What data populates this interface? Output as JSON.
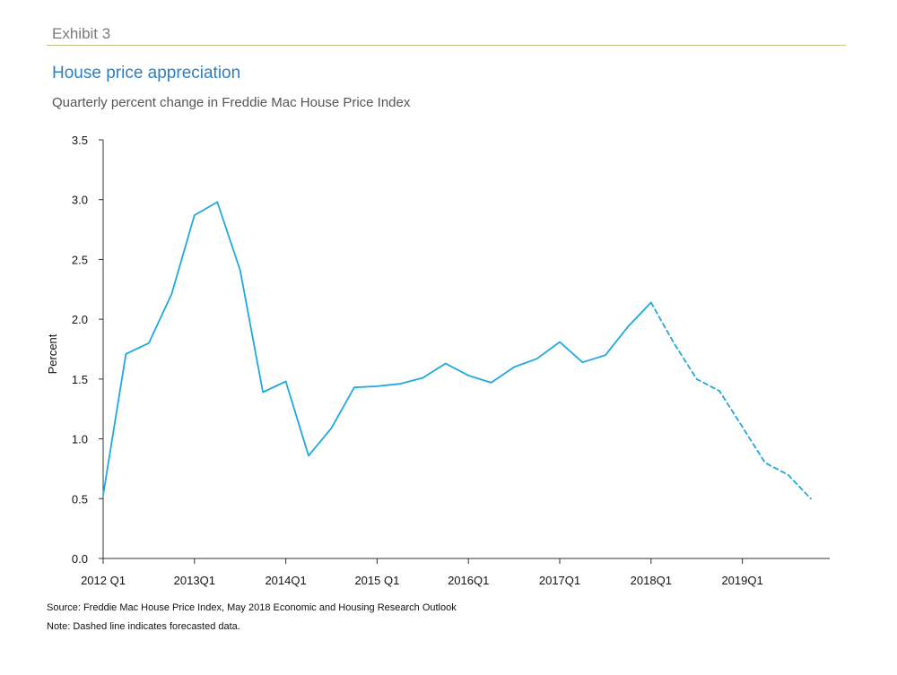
{
  "header": {
    "exhibit": "Exhibit 3",
    "title": "House price appreciation",
    "subtitle": "Quarterly percent change in Freddie Mac House Price Index"
  },
  "footer": {
    "source": "Source: Freddie Mac House Price Index, May 2018 Economic and Housing Research Outlook",
    "note": "Note: Dashed line indicates forecasted data."
  },
  "colors": {
    "line": "#1fa8e0",
    "axis": "#333333",
    "title": "#2f7fc1",
    "rule": "#b9c98a"
  },
  "chart_data": {
    "type": "line",
    "title": "House price appreciation",
    "subtitle": "Quarterly percent change in Freddie Mac House Price Index",
    "xlabel": "",
    "ylabel": "Percent",
    "ylim": [
      0,
      3.5
    ],
    "yticks": [
      "0.0",
      "0.5",
      "1.0",
      "1.5",
      "2.0",
      "2.5",
      "3.0",
      "3.5"
    ],
    "x_tick_labels": [
      "2012 Q1",
      "2013Q1",
      "2014Q1",
      "2015 Q1",
      "2016Q1",
      "2017Q1",
      "2018Q1",
      "2019Q1"
    ],
    "grid": false,
    "legend": "none",
    "categories": [
      "2012 Q1",
      "2012 Q2",
      "2012 Q3",
      "2012 Q4",
      "2013 Q1",
      "2013 Q2",
      "2013 Q3",
      "2013 Q4",
      "2014 Q1",
      "2014 Q2",
      "2014 Q3",
      "2014 Q4",
      "2015 Q1",
      "2015 Q2",
      "2015 Q3",
      "2015 Q4",
      "2016 Q1",
      "2016 Q2",
      "2016 Q3",
      "2016 Q4",
      "2017 Q1",
      "2017 Q2",
      "2017 Q3",
      "2017 Q4",
      "2018 Q1",
      "2018 Q2",
      "2018 Q3",
      "2018 Q4",
      "2019 Q1",
      "2019 Q2",
      "2019 Q3",
      "2019 Q4"
    ],
    "series": [
      {
        "style": "solid",
        "values": [
          0.53,
          1.71,
          1.8,
          2.21,
          2.87,
          2.98,
          2.41,
          1.39,
          1.48,
          0.86,
          1.09,
          1.43,
          1.44,
          1.46,
          1.51,
          1.63,
          1.53,
          1.47,
          1.6,
          1.67,
          1.81,
          1.64,
          1.7,
          1.94,
          2.14,
          null,
          null,
          null,
          null,
          null,
          null,
          null
        ]
      },
      {
        "style": "dashed",
        "values": [
          null,
          null,
          null,
          null,
          null,
          null,
          null,
          null,
          null,
          null,
          null,
          null,
          null,
          null,
          null,
          null,
          null,
          null,
          null,
          null,
          null,
          null,
          null,
          null,
          2.14,
          1.8,
          1.5,
          1.4,
          1.1,
          0.8,
          0.7,
          0.5
        ]
      }
    ]
  }
}
